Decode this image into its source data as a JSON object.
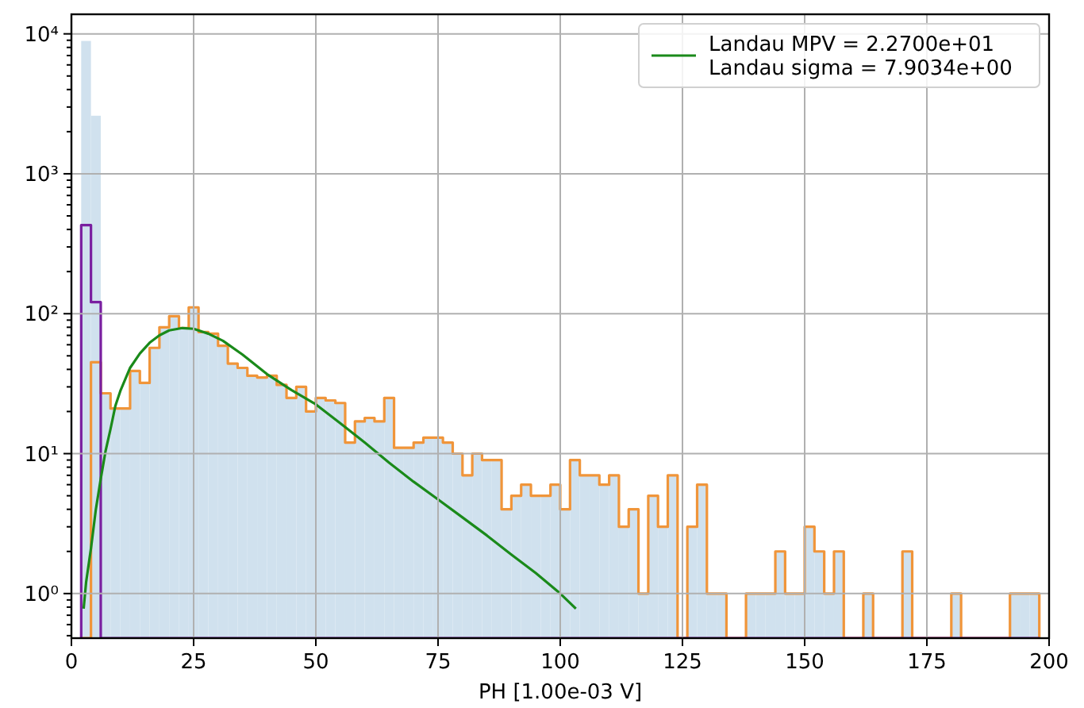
{
  "chart_data": {
    "type": "histogram",
    "xlabel": "PH [1.00e-03 V]",
    "bins": [
      2,
      4,
      6,
      8,
      10,
      12,
      14,
      16,
      18,
      20,
      22,
      24,
      26,
      28,
      30,
      32,
      34,
      36,
      38,
      40,
      42,
      44,
      46,
      48,
      50,
      52,
      54,
      56,
      58,
      60,
      62,
      64,
      66,
      68,
      70,
      72,
      74,
      76,
      78,
      80,
      82,
      84,
      86,
      88,
      90,
      92,
      94,
      96,
      98,
      100,
      102,
      104,
      106,
      108,
      110,
      112,
      114,
      116,
      118,
      120,
      122,
      124,
      126,
      128,
      130,
      132,
      134,
      136,
      138,
      140,
      142,
      144,
      146,
      148,
      150,
      152,
      154,
      156,
      158,
      160,
      162,
      164,
      166,
      168,
      170,
      172,
      174,
      176,
      178,
      180,
      182,
      184,
      186,
      188,
      190,
      192,
      194,
      196,
      198
    ],
    "series": [
      {
        "color": "#d0e1ee",
        "values": [
          8900,
          2600,
          27,
          21,
          21,
          39,
          32,
          57,
          80,
          96,
          79,
          111,
          74,
          72,
          59,
          44,
          41,
          36,
          35,
          36,
          31,
          25,
          30,
          20,
          25,
          24,
          23,
          12,
          17,
          18,
          17,
          25,
          11,
          11,
          12,
          13,
          13,
          12,
          10,
          7,
          10,
          9,
          9,
          4,
          5,
          6,
          5,
          5,
          6,
          4,
          9,
          7,
          7,
          6,
          7,
          3,
          4,
          1,
          5,
          3,
          7,
          null,
          3,
          6,
          1,
          1,
          null,
          null,
          1,
          1,
          1,
          2,
          1,
          1,
          3,
          2,
          1,
          2,
          null,
          null,
          1,
          null,
          null,
          null,
          2,
          null,
          null,
          null,
          null,
          1,
          null,
          null,
          null,
          null,
          null,
          1,
          1,
          1
        ]
      },
      {
        "type": "histogram",
        "line_style": "solid",
        "color": "#f0953a",
        "values": [
          null,
          45,
          27,
          21,
          21,
          39,
          32,
          57,
          80,
          96,
          79,
          111,
          74,
          72,
          59,
          44,
          41,
          36,
          35,
          36,
          31,
          25,
          30,
          20,
          25,
          24,
          23,
          12,
          17,
          18,
          17,
          25,
          11,
          11,
          12,
          13,
          13,
          12,
          10,
          7,
          10,
          9,
          9,
          4,
          5,
          6,
          5,
          5,
          6,
          4,
          9,
          7,
          7,
          6,
          7,
          3,
          4,
          1,
          5,
          3,
          7,
          null,
          3,
          6,
          1,
          1,
          null,
          null,
          1,
          1,
          1,
          2,
          1,
          1,
          3,
          2,
          1,
          2,
          null,
          null,
          1,
          null,
          null,
          null,
          2,
          null,
          null,
          null,
          null,
          1,
          null,
          null,
          null,
          null,
          null,
          1,
          1,
          1
        ]
      },
      {
        "type": "histogram",
        "line_style": "solid",
        "color": "#7a1fa0",
        "values": [
          430,
          121,
          null,
          null,
          null,
          null,
          null,
          null,
          null,
          null,
          null,
          null,
          null,
          null,
          null,
          null,
          null,
          null,
          null,
          null,
          null,
          null,
          null,
          null,
          null,
          null,
          null,
          null,
          null,
          null,
          null,
          null,
          null,
          null,
          null,
          null,
          null,
          null,
          null,
          null,
          null,
          null,
          null,
          null,
          null,
          null,
          null,
          null,
          null,
          null,
          null,
          null,
          null,
          null,
          null,
          null,
          null,
          null,
          null,
          null,
          null,
          null,
          null,
          null,
          null,
          null,
          null,
          null,
          null,
          null,
          null,
          null,
          null,
          null,
          null,
          null,
          null,
          null,
          null,
          null,
          null,
          null,
          null,
          null,
          null,
          null,
          null,
          null,
          null,
          null,
          null,
          null,
          null,
          null,
          null,
          null,
          null,
          null
        ]
      },
      {
        "type": "line",
        "name": "Landau MPV = 2.2700e+01\nLandau sigma = 7.9034e+00",
        "color": "#1a8a1a",
        "x": [
          2.5,
          3,
          4,
          5,
          6,
          7,
          8,
          9,
          10,
          12,
          14,
          16,
          18,
          20,
          22.7,
          25,
          28,
          31,
          35,
          40,
          45,
          50,
          55,
          60,
          65,
          70,
          75,
          80,
          85,
          90,
          95,
          100,
          103.2
        ],
        "values": [
          0.78,
          1.2,
          2.1,
          4,
          6.6,
          10.5,
          15,
          22,
          28,
          41,
          52,
          62,
          70,
          76,
          79,
          78,
          72,
          64,
          51,
          37,
          28.5,
          22.5,
          16.5,
          12,
          8.6,
          6.3,
          4.7,
          3.5,
          2.6,
          1.9,
          1.4,
          1.0,
          0.78
        ]
      }
    ],
    "xlim": [
      0,
      200
    ],
    "xticks": [
      0,
      25,
      50,
      75,
      100,
      125,
      150,
      175,
      200
    ],
    "log": true,
    "ylim": [
      0.48,
      13800
    ],
    "yticks": [
      {
        "value": 0.5,
        "label": null
      },
      {
        "value": 0.6,
        "label": null
      },
      {
        "value": 0.7,
        "label": null
      },
      {
        "value": 0.8,
        "label": null
      },
      {
        "value": 0.9,
        "label": null
      },
      {
        "value": 1,
        "label": "10⁰"
      },
      {
        "value": 2,
        "label": null
      },
      {
        "value": 3,
        "label": null
      },
      {
        "value": 4,
        "label": null
      },
      {
        "value": 5,
        "label": null
      },
      {
        "value": 6,
        "label": null
      },
      {
        "value": 7,
        "label": null
      },
      {
        "value": 8,
        "label": null
      },
      {
        "value": 9,
        "label": null
      },
      {
        "value": 10,
        "label": "10¹"
      },
      {
        "value": 20,
        "label": null
      },
      {
        "value": 30,
        "label": null
      },
      {
        "value": 40,
        "label": null
      },
      {
        "value": 50,
        "label": null
      },
      {
        "value": 60,
        "label": null
      },
      {
        "value": 70,
        "label": null
      },
      {
        "value": 80,
        "label": null
      },
      {
        "value": 90,
        "label": null
      },
      {
        "value": 100,
        "label": "10²"
      },
      {
        "value": 200,
        "label": null
      },
      {
        "value": 300,
        "label": null
      },
      {
        "value": 400,
        "label": null
      },
      {
        "value": 500,
        "label": null
      },
      {
        "value": 600,
        "label": null
      },
      {
        "value": 700,
        "label": null
      },
      {
        "value": 800,
        "label": null
      },
      {
        "value": 900,
        "label": null
      },
      {
        "value": 1000,
        "label": "10³"
      },
      {
        "value": 2000,
        "label": null
      },
      {
        "value": 3000,
        "label": null
      },
      {
        "value": 4000,
        "label": null
      },
      {
        "value": 5000,
        "label": null
      },
      {
        "value": 6000,
        "label": null
      },
      {
        "value": 7000,
        "label": null
      },
      {
        "value": 8000,
        "label": null
      },
      {
        "value": 9000,
        "label": null
      },
      {
        "value": 10000,
        "label": "10⁴"
      }
    ],
    "grid": true,
    "legend": "top right"
  }
}
